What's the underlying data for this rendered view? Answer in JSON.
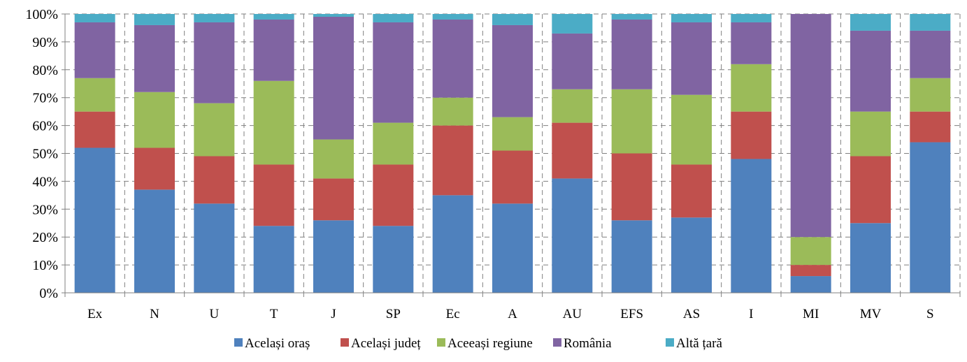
{
  "chart_data": {
    "type": "bar",
    "stacked": true,
    "percent": true,
    "title": "",
    "xlabel": "",
    "ylabel": "",
    "ylim": [
      0,
      100
    ],
    "yticks": [
      "0%",
      "10%",
      "20%",
      "30%",
      "40%",
      "50%",
      "60%",
      "70%",
      "80%",
      "90%",
      "100%"
    ],
    "grid": "dashed",
    "legend_position": "bottom",
    "categories": [
      "Ex",
      "N",
      "U",
      "T",
      "J",
      "SP",
      "Ec",
      "A",
      "AU",
      "EFS",
      "AS",
      "I",
      "MI",
      "MV",
      "S"
    ],
    "series": [
      {
        "name": "Același oraș",
        "color": "#4F81BD",
        "values": [
          52,
          37,
          32,
          24,
          26,
          24,
          35,
          32,
          41,
          26,
          27,
          48,
          6,
          25,
          54
        ]
      },
      {
        "name": "Același județ",
        "color": "#C0504D",
        "values": [
          13,
          15,
          17,
          22,
          15,
          22,
          25,
          19,
          20,
          24,
          19,
          17,
          4,
          24,
          11
        ]
      },
      {
        "name": "Aceeași regiune",
        "color": "#9BBB59",
        "values": [
          12,
          20,
          19,
          30,
          14,
          15,
          10,
          12,
          12,
          23,
          25,
          17,
          10,
          16,
          12
        ]
      },
      {
        "name": "România",
        "color": "#8064A2",
        "values": [
          20,
          24,
          29,
          22,
          44,
          36,
          28,
          33,
          20,
          25,
          26,
          15,
          80,
          29,
          17
        ]
      },
      {
        "name": "Altă țară",
        "color": "#4BACC6",
        "values": [
          3,
          4,
          3,
          2,
          1,
          3,
          2,
          4,
          7,
          2,
          3,
          3,
          0,
          6,
          6
        ]
      }
    ]
  }
}
